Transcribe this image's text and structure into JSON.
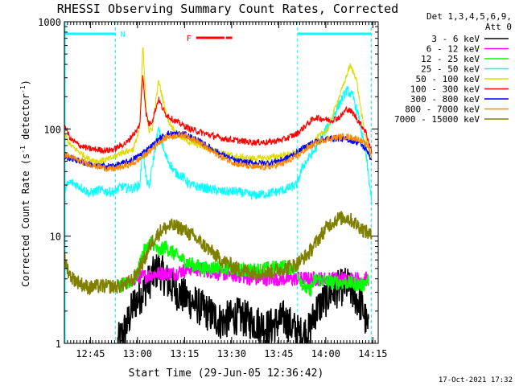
{
  "chart_data": {
    "type": "line",
    "title": "RHESSI Observing Summary Count Rates, Corrected",
    "xlabel": "Start Time (29-Jun-05 12:36:42)",
    "ylabel_main": "Corrected Count Rate (s",
    "ylabel_sup1": "-1",
    "ylabel_mid": " detector",
    "ylabel_sup2": "-1",
    "ylabel_end": ")",
    "y_scale": "log",
    "ylim": [
      1,
      1000
    ],
    "xlim_minutes": [
      0,
      100
    ],
    "x_ticks": [
      {
        "label": "12:45",
        "minute": 8.3
      },
      {
        "label": "13:00",
        "minute": 23.3
      },
      {
        "label": "13:15",
        "minute": 38.3
      },
      {
        "label": "13:30",
        "minute": 53.3
      },
      {
        "label": "13:45",
        "minute": 68.3
      },
      {
        "label": "14:00",
        "minute": 83.3
      },
      {
        "label": "14:15",
        "minute": 98.3
      }
    ],
    "y_ticks": [
      {
        "label": "1",
        "value": 1
      },
      {
        "label": "10",
        "value": 10
      },
      {
        "label": "100",
        "value": 100
      },
      {
        "label": "1000",
        "value": 1000
      }
    ],
    "legend_header_1": "Det 1,3,4,5,6,9,",
    "legend_header_2": "Att 0",
    "legend_placement": "right",
    "night_label": "N",
    "flare_label": "F",
    "night_intervals": [
      [
        0,
        16.3
      ],
      [
        74.3,
        97.8
      ]
    ],
    "night_boundaries": [
      16.3,
      74.3,
      97.8
    ],
    "flare_intervals": [
      [
        42,
        51
      ],
      [
        51.5,
        53.5
      ]
    ],
    "timestamp": "17-Oct-2021 17:32",
    "series": [
      {
        "name": "3 - 6 keV",
        "color": "#000000",
        "x": [
          17,
          20,
          22,
          25,
          28,
          30,
          33,
          36,
          40,
          45,
          50,
          55,
          60,
          65,
          70,
          75,
          78,
          80,
          85,
          90,
          95,
          97
        ],
        "y": [
          1,
          1.5,
          2.3,
          3,
          4.2,
          5,
          3.7,
          3,
          2.5,
          2,
          1.6,
          1.8,
          1.6,
          1.4,
          1.7,
          1.2,
          1.3,
          2,
          3,
          3.5,
          2.2,
          1.2
        ]
      },
      {
        "name": "6 - 12 keV",
        "color": "#ff00ff",
        "x": [
          22,
          25,
          30,
          35,
          40,
          45,
          50,
          55,
          60,
          65,
          70,
          74,
          78,
          82,
          90,
          95,
          97
        ],
        "y": [
          4,
          4.2,
          4.5,
          4.5,
          5,
          4.8,
          4.5,
          4.3,
          4,
          4,
          4,
          4,
          4,
          4,
          4,
          4,
          4
        ]
      },
      {
        "name": "12 - 25 keV",
        "color": "#00ff00",
        "x": [
          17,
          20,
          23,
          25,
          28,
          30,
          32,
          36,
          40,
          45,
          50,
          55,
          60,
          65,
          70,
          74,
          76,
          78,
          80,
          85,
          90,
          95,
          97
        ],
        "y": [
          3.3,
          3.6,
          4.2,
          7,
          9,
          7,
          8,
          6.5,
          5.5,
          5,
          5.2,
          4.8,
          4.8,
          5,
          5.2,
          5,
          3.5,
          3,
          4,
          3.7,
          3.7,
          3.5,
          4
        ]
      },
      {
        "name": "25 - 50 keV",
        "color": "#00ffff",
        "x": [
          0,
          2,
          5,
          8,
          11,
          14,
          16,
          18,
          20,
          22,
          24,
          25,
          26,
          27,
          28,
          30,
          32,
          35,
          38,
          40,
          45,
          50,
          55,
          60,
          65,
          70,
          74,
          76,
          80,
          85,
          88,
          90,
          92,
          94,
          96,
          98
        ],
        "y": [
          28,
          32,
          29,
          25,
          27,
          26,
          26,
          29,
          28,
          28,
          30,
          65,
          35,
          28,
          45,
          100,
          58,
          40,
          35,
          30,
          28,
          26,
          26,
          24,
          25,
          27,
          30,
          45,
          65,
          120,
          180,
          230,
          200,
          120,
          60,
          20
        ]
      },
      {
        "name": "50 - 100 keV",
        "color": "#dddd00",
        "x": [
          0,
          2,
          5,
          8,
          11,
          14,
          16,
          18,
          20,
          22,
          24,
          25,
          26,
          27,
          28,
          30,
          33,
          36,
          40,
          45,
          50,
          55,
          60,
          65,
          70,
          74,
          78,
          80,
          84,
          87,
          89,
          91,
          93,
          95,
          97,
          98
        ],
        "y": [
          90,
          70,
          60,
          52,
          50,
          52,
          55,
          60,
          62,
          65,
          100,
          620,
          160,
          95,
          100,
          280,
          120,
          88,
          75,
          67,
          60,
          55,
          53,
          54,
          57,
          60,
          70,
          80,
          100,
          180,
          260,
          390,
          300,
          120,
          62,
          55
        ]
      },
      {
        "name": "100 - 300 keV",
        "color": "#ff0000",
        "x": [
          0,
          2,
          5,
          8,
          11,
          14,
          16,
          18,
          20,
          22,
          23,
          24,
          25,
          26,
          27,
          28,
          30,
          32,
          35,
          40,
          45,
          50,
          55,
          60,
          65,
          70,
          74,
          78,
          80,
          85,
          88,
          90,
          92,
          94,
          96,
          98
        ],
        "y": [
          110,
          80,
          70,
          65,
          64,
          63,
          65,
          70,
          75,
          90,
          95,
          110,
          330,
          140,
          110,
          120,
          190,
          140,
          120,
          100,
          90,
          82,
          78,
          75,
          75,
          80,
          90,
          115,
          128,
          120,
          130,
          155,
          140,
          115,
          95,
          60
        ]
      },
      {
        "name": "300 - 800 keV",
        "color": "#0000ff",
        "x": [
          0,
          5,
          10,
          15,
          18,
          22,
          25,
          28,
          30,
          33,
          38,
          42,
          46,
          50,
          55,
          60,
          65,
          70,
          74,
          78,
          82,
          86,
          90,
          94,
          97,
          98
        ],
        "y": [
          55,
          50,
          45,
          45,
          47,
          52,
          60,
          70,
          80,
          90,
          90,
          80,
          68,
          58,
          50,
          48,
          48,
          52,
          60,
          72,
          80,
          82,
          80,
          75,
          60,
          47
        ]
      },
      {
        "name": "800 - 7000 keV",
        "color": "#ff8800",
        "x": [
          0,
          5,
          10,
          15,
          18,
          22,
          25,
          28,
          30,
          33,
          38,
          42,
          46,
          50,
          55,
          60,
          65,
          70,
          74,
          78,
          82,
          86,
          90,
          94,
          97,
          98
        ],
        "y": [
          58,
          50,
          45,
          42,
          44,
          48,
          55,
          65,
          75,
          85,
          88,
          78,
          64,
          55,
          47,
          44,
          44,
          48,
          55,
          68,
          78,
          83,
          85,
          80,
          68,
          55
        ]
      },
      {
        "name": "7000 - 15000 keV",
        "color": "#808000",
        "x": [
          0,
          2,
          4,
          6,
          8,
          10,
          14,
          17,
          20,
          22,
          24,
          26,
          28,
          31,
          34,
          37,
          40,
          45,
          50,
          55,
          60,
          65,
          70,
          74,
          78,
          81,
          84,
          87,
          90,
          93,
          96,
          98
        ],
        "y": [
          6,
          4.2,
          3.8,
          3.5,
          3.3,
          3.4,
          3.4,
          3.4,
          3.6,
          4,
          5,
          6.5,
          9,
          11.5,
          12.5,
          12,
          10.5,
          8,
          6,
          5,
          4.6,
          4.6,
          5,
          5.5,
          7,
          9.5,
          12.5,
          14.5,
          15,
          13,
          11,
          10
        ]
      }
    ]
  }
}
